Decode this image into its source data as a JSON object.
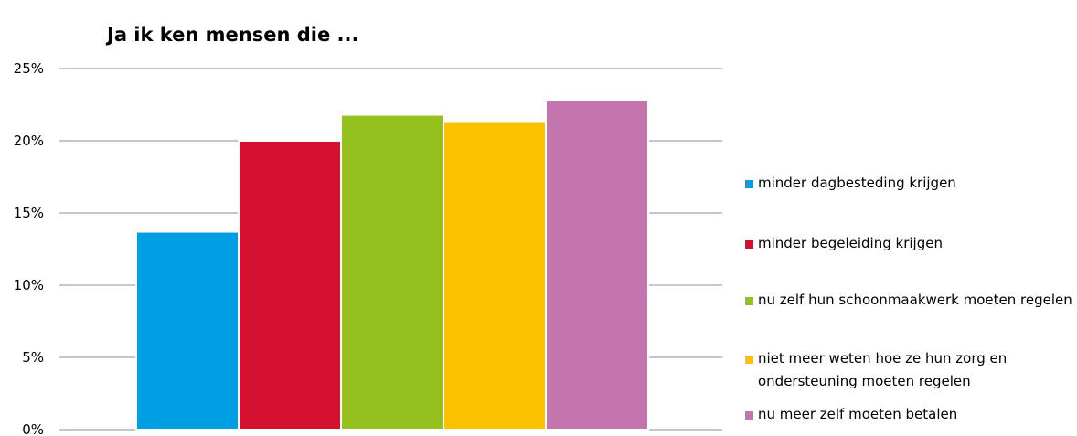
{
  "chart_data": {
    "type": "bar",
    "title": "Ja ik ken mensen die ...",
    "xlabel": "",
    "ylabel": "",
    "ylim": [
      0,
      25
    ],
    "yticks": [
      "0%",
      "5%",
      "10%",
      "15%",
      "20%",
      "25%"
    ],
    "grid": true,
    "legend_position": "right",
    "series": [
      {
        "name": "minder dagbesteding krijgen",
        "value": 13.7,
        "color": "#009fe3"
      },
      {
        "name": "minder begeleiding krijgen",
        "value": 20.0,
        "color": "#d51130"
      },
      {
        "name": "nu zelf hun schoonmaakwerk moeten regelen",
        "value": 21.8,
        "color": "#95c11f"
      },
      {
        "name": "niet meer weten hoe ze hun zorg en ondersteuning moeten regelen",
        "value": 21.3,
        "color": "#fcc200"
      },
      {
        "name": "nu meer zelf moeten betalen",
        "value": 22.8,
        "color": "#c475ae"
      }
    ]
  }
}
